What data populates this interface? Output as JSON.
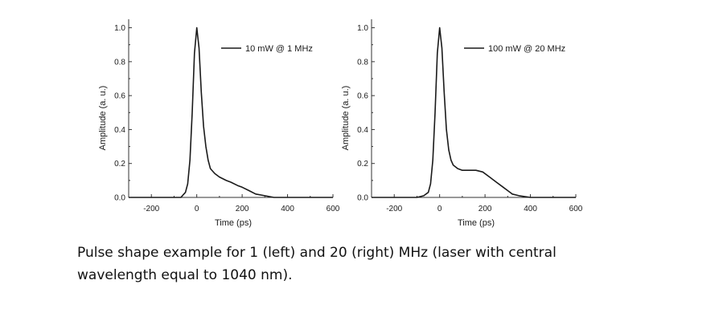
{
  "chart_data": [
    {
      "type": "line",
      "xlabel": "Time (ps)",
      "ylabel": "Amplitude (a. u.)",
      "xlim": [
        -300,
        600
      ],
      "ylim": [
        0,
        1.05
      ],
      "xticks": [
        -200,
        0,
        200,
        400,
        600
      ],
      "yticks": [
        0.0,
        0.2,
        0.4,
        0.6,
        0.8,
        1.0
      ],
      "xtick_labels": [
        "-200",
        "0",
        "200",
        "400",
        "600"
      ],
      "ytick_labels": [
        "0.0",
        "0.2",
        "0.4",
        "0.6",
        "0.8",
        "1.0"
      ],
      "grid": false,
      "legend_position": "top-right",
      "series": [
        {
          "name": "10 mW @ 1 MHz",
          "x": [
            -300,
            -250,
            -200,
            -150,
            -100,
            -70,
            -50,
            -40,
            -30,
            -20,
            -10,
            0,
            10,
            20,
            30,
            40,
            50,
            60,
            80,
            100,
            130,
            150,
            180,
            200,
            230,
            260,
            300,
            340,
            380,
            420,
            460,
            500,
            550,
            600
          ],
          "y": [
            0.0,
            0.0,
            0.0,
            0.0,
            0.0,
            0.0,
            0.03,
            0.08,
            0.22,
            0.5,
            0.85,
            1.0,
            0.88,
            0.62,
            0.42,
            0.3,
            0.22,
            0.17,
            0.14,
            0.12,
            0.1,
            0.09,
            0.07,
            0.06,
            0.04,
            0.02,
            0.01,
            0.0,
            0.0,
            0.0,
            0.0,
            0.0,
            0.0,
            0.0
          ]
        }
      ]
    },
    {
      "type": "line",
      "xlabel": "Time (ps)",
      "ylabel": "Amplitude (a. u.)",
      "xlim": [
        -300,
        600
      ],
      "ylim": [
        0,
        1.05
      ],
      "xticks": [
        -200,
        0,
        200,
        400,
        600
      ],
      "yticks": [
        0.0,
        0.2,
        0.4,
        0.6,
        0.8,
        1.0
      ],
      "xtick_labels": [
        "-200",
        "0",
        "200",
        "400",
        "600"
      ],
      "ytick_labels": [
        "0.0",
        "0.2",
        "0.4",
        "0.6",
        "0.8",
        "1.0"
      ],
      "grid": false,
      "legend_position": "top-right",
      "series": [
        {
          "name": "100 mW @ 20 MHz",
          "x": [
            -300,
            -250,
            -200,
            -150,
            -100,
            -70,
            -50,
            -40,
            -30,
            -20,
            -10,
            0,
            10,
            20,
            30,
            40,
            50,
            60,
            80,
            100,
            130,
            160,
            190,
            220,
            250,
            280,
            300,
            320,
            350,
            400,
            450,
            500,
            550,
            600
          ],
          "y": [
            0.0,
            0.0,
            0.0,
            0.0,
            0.0,
            0.01,
            0.03,
            0.08,
            0.22,
            0.5,
            0.85,
            1.0,
            0.88,
            0.62,
            0.4,
            0.28,
            0.22,
            0.19,
            0.17,
            0.16,
            0.16,
            0.16,
            0.15,
            0.12,
            0.09,
            0.06,
            0.04,
            0.02,
            0.01,
            0.0,
            0.0,
            0.0,
            0.0,
            0.0
          ]
        }
      ]
    }
  ],
  "caption": {
    "line1": "Pulse shape example for 1 (left) and 20 (right) MHz (laser with central",
    "line2": "wavelength equal to 1040 nm)."
  }
}
